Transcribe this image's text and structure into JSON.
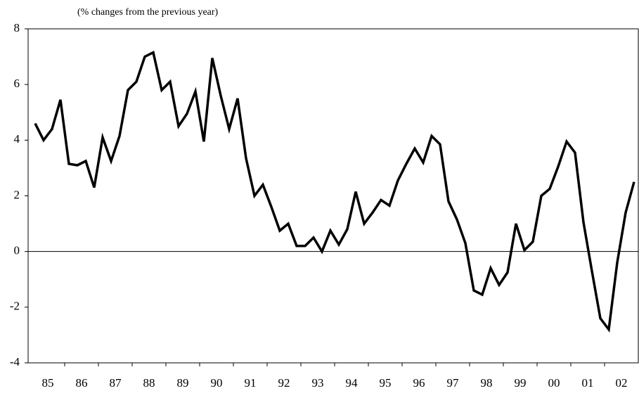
{
  "chart_data": {
    "type": "line",
    "subtitle": "(% changes from the previous year)",
    "categories": [
      null,
      "85",
      null,
      null,
      null,
      "86",
      null,
      null,
      null,
      "87",
      null,
      null,
      null,
      "88",
      null,
      null,
      null,
      "89",
      null,
      null,
      null,
      "90",
      null,
      null,
      null,
      "91",
      null,
      null,
      null,
      "92",
      null,
      null,
      null,
      "93",
      null,
      null,
      null,
      "94",
      null,
      null,
      null,
      "95",
      null,
      null,
      null,
      "96",
      null,
      null,
      null,
      "97",
      null,
      null,
      null,
      "98",
      null,
      null,
      null,
      "99",
      null,
      null,
      null,
      "00",
      null,
      null,
      null,
      "01",
      null,
      null,
      null,
      "02",
      null,
      null
    ],
    "series": [
      {
        "color": "#000000",
        "values": [
          4.6,
          4.0,
          4.4,
          5.45,
          3.15,
          3.1,
          3.25,
          2.3,
          4.1,
          3.25,
          4.15,
          5.8,
          6.1,
          7.0,
          7.15,
          5.8,
          6.1,
          4.5,
          4.95,
          5.75,
          3.95,
          6.95,
          5.6,
          4.4,
          5.5,
          3.35,
          2.0,
          2.4,
          1.6,
          0.75,
          1.0,
          0.2,
          0.2,
          0.5,
          0.0,
          0.75,
          0.25,
          0.8,
          2.15,
          1.0,
          1.4,
          1.85,
          1.65,
          2.55,
          3.15,
          3.7,
          3.2,
          4.15,
          3.85,
          1.8,
          1.15,
          0.3,
          -1.4,
          -1.55,
          -0.6,
          -1.2,
          -0.75,
          1.0,
          0.05,
          0.35,
          2.0,
          2.25,
          3.05,
          3.95,
          3.55,
          1.05,
          -0.7,
          -2.4,
          -2.8,
          -0.4,
          1.4,
          2.5
        ]
      }
    ],
    "ylim": [
      -4,
      8
    ],
    "yticks": [
      -4,
      -2,
      0,
      2,
      4,
      6,
      8
    ],
    "zero_line": true
  }
}
